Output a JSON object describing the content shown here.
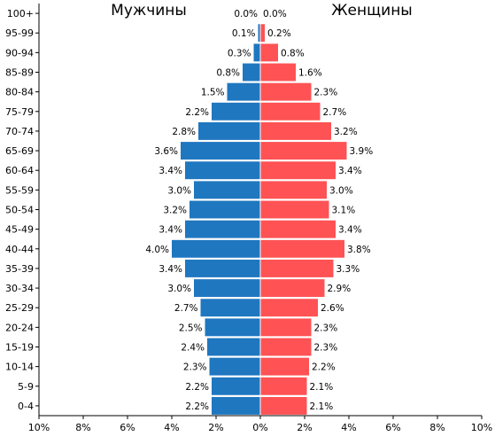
{
  "chart_data": {
    "type": "bar",
    "orientation": "horizontal-population-pyramid",
    "categories": [
      "0-4",
      "5-9",
      "10-14",
      "15-19",
      "20-24",
      "25-29",
      "30-34",
      "35-39",
      "40-44",
      "45-49",
      "50-54",
      "55-59",
      "60-64",
      "65-69",
      "70-74",
      "75-79",
      "80-84",
      "85-89",
      "90-94",
      "95-99",
      "100+"
    ],
    "series": [
      {
        "name": "Мужчины",
        "color": "#1f77c0",
        "values": [
          2.2,
          2.2,
          2.3,
          2.4,
          2.5,
          2.7,
          3.0,
          3.4,
          4.0,
          3.4,
          3.2,
          3.0,
          3.4,
          3.6,
          2.8,
          2.2,
          1.5,
          0.8,
          0.3,
          0.1,
          0.0
        ],
        "labels": [
          "2.2%",
          "2.2%",
          "2.3%",
          "2.4%",
          "2.5%",
          "2.7%",
          "3.0%",
          "3.4%",
          "4.0%",
          "3.4%",
          "3.2%",
          "3.0%",
          "3.4%",
          "3.6%",
          "2.8%",
          "2.2%",
          "1.5%",
          "0.8%",
          "0.3%",
          "0.1%",
          "0.0%"
        ]
      },
      {
        "name": "Женщины",
        "color": "#ff5254",
        "values": [
          2.1,
          2.1,
          2.2,
          2.3,
          2.3,
          2.6,
          2.9,
          3.3,
          3.8,
          3.4,
          3.1,
          3.0,
          3.4,
          3.9,
          3.2,
          2.7,
          2.3,
          1.6,
          0.8,
          0.2,
          0.0
        ],
        "labels": [
          "2.1%",
          "2.1%",
          "2.2%",
          "2.3%",
          "2.3%",
          "2.6%",
          "2.9%",
          "3.3%",
          "3.8%",
          "3.4%",
          "3.1%",
          "3.0%",
          "3.4%",
          "3.9%",
          "3.2%",
          "2.7%",
          "2.3%",
          "1.6%",
          "0.8%",
          "0.2%",
          "0.0%"
        ]
      }
    ],
    "xlim": [
      -10,
      10
    ],
    "xticks": [
      -10,
      -8,
      -6,
      -4,
      -2,
      0,
      2,
      4,
      6,
      8,
      10
    ],
    "xtick_labels": [
      "10%",
      "8%",
      "6%",
      "4%",
      "2%",
      "0%",
      "2%",
      "4%",
      "6%",
      "8%",
      "10%"
    ],
    "grid": false,
    "legend": "none"
  }
}
